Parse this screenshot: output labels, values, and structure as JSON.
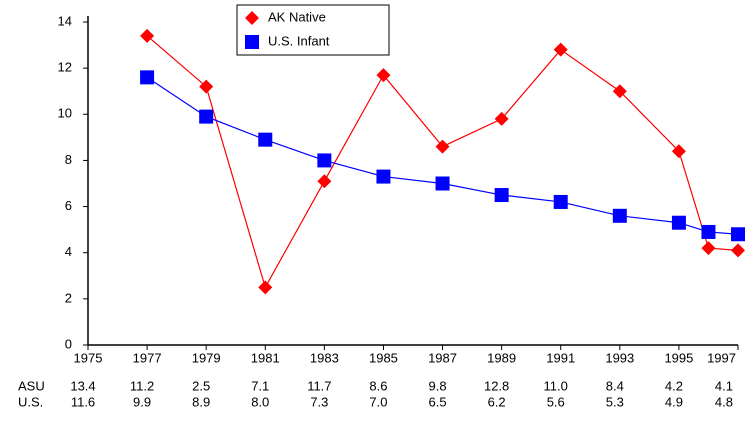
{
  "chart_data": {
    "type": "line",
    "x": [
      1977,
      1979,
      1981,
      1983,
      1985,
      1987,
      1989,
      1991,
      1993,
      1995,
      1996,
      1997
    ],
    "series": [
      {
        "name": "AK Native",
        "row_label": "ASU",
        "color": "#ff0000",
        "marker": "diamond",
        "values": [
          13.4,
          11.2,
          2.5,
          7.1,
          11.7,
          8.6,
          9.8,
          12.8,
          11.0,
          8.4,
          4.2,
          4.1
        ],
        "value_labels": [
          "13.4",
          "11.2",
          "2.5",
          "7.1",
          "11.7",
          "8.6",
          "9.8",
          "12.8",
          "11.0",
          "8.4",
          "4.2",
          "4.1"
        ]
      },
      {
        "name": "U.S. Infant",
        "row_label": "U.S.",
        "color": "#0000ff",
        "marker": "square",
        "values": [
          11.6,
          9.9,
          8.9,
          8.0,
          7.3,
          7.0,
          6.5,
          6.2,
          5.6,
          5.3,
          4.9,
          4.8
        ],
        "value_labels": [
          "11.6",
          "9.9",
          "8.9",
          "8.0",
          "7.3",
          "7.0",
          "6.5",
          "6.2",
          "5.6",
          "5.3",
          "4.9",
          "4.8"
        ]
      }
    ],
    "xlim": [
      1975,
      1997
    ],
    "xticks": [
      1975,
      1977,
      1979,
      1981,
      1983,
      1985,
      1987,
      1989,
      1991,
      1993,
      1995,
      1997
    ],
    "ylim": [
      0,
      14
    ],
    "yticks": [
      0,
      2,
      4,
      6,
      8,
      10,
      12,
      14
    ],
    "grid": false,
    "legend": "top"
  }
}
